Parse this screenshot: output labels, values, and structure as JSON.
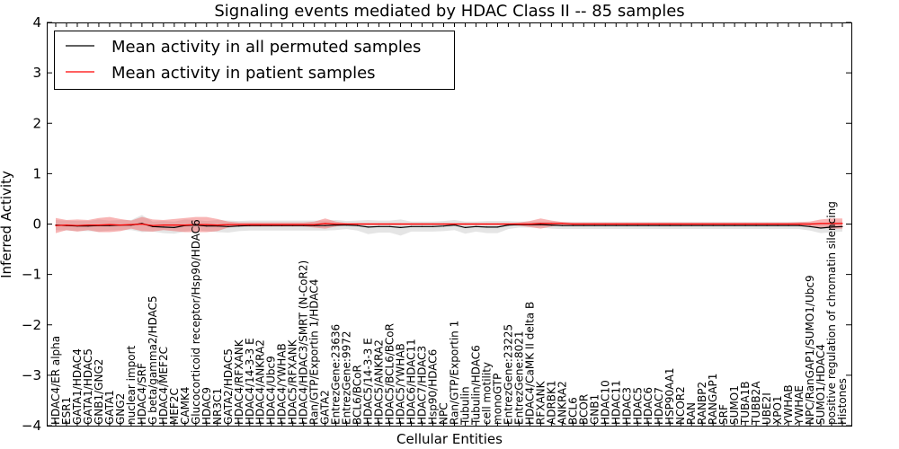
{
  "chart_data": {
    "type": "line",
    "title": "Signaling events mediated by HDAC Class II -- 85 samples",
    "xlabel": "Cellular Entities",
    "ylabel": "Inferred Activity",
    "ylim": [
      -4,
      4
    ],
    "yticks": [
      "−4",
      "−3",
      "−2",
      "−1",
      "0",
      "1",
      "2",
      "3",
      "4"
    ],
    "legend": {
      "position": "top-left",
      "entries": [
        {
          "label": "Mean activity in all permuted samples",
          "color": "#000000"
        },
        {
          "label": "Mean activity in patient samples",
          "color": "#ff0000"
        }
      ]
    },
    "categories": [
      "HDAC4/ER alpha",
      "ESR1",
      "GATA1/HDAC4",
      "GATA1/HDAC5",
      "GNB1/GNG2",
      "GATA1",
      "GNG2",
      "nuclear import",
      "HDAC4/SRF",
      "G beta/gamma2/HDAC5",
      "HDAC4/MEF2C",
      "MEF2C",
      "CAMK4",
      "Glucocorticoid receptor/Hsp90/HDAC6",
      "HDAC9",
      "NR3C1",
      "GATA2/HDAC5",
      "HDAC4/RFXANK",
      "HDAC4/14-3-3 E",
      "HDAC4/ANKRA2",
      "HDAC4/Ubc9",
      "HDAC4/YWHAB",
      "HDAC5/RFXANK",
      "HDAC4/HDAC3/SMRT (N-CoR2)",
      "Ran/GTP/Exportin 1/HDAC4",
      "GATA2",
      "EntrezGene:23636",
      "EntrezGene:9972",
      "BCL6/BCoR",
      "HDAC5/14-3-3 E",
      "HDAC5/ANKRA2",
      "HDAC5/BCL6/BCoR",
      "HDAC5/YWHAB",
      "HDAC6/HDAC11",
      "HDAC7/HDAC3",
      "Hsp90/HDAC6",
      "NPC",
      "Ran/GTP/Exportin 1",
      "Tubulin",
      "Tubulin/HDAC6",
      "cell motility",
      "monoGTP",
      "EntrezGene:23225",
      "EntrezGene:8021",
      "HDAC4/CaMK II delta B",
      "RFXANK",
      "ADRBK1",
      "ANKRA2",
      "BCL6",
      "BCOR",
      "GNB1",
      "HDAC10",
      "HDAC11",
      "HDAC3",
      "HDAC5",
      "HDAC6",
      "HDAC7",
      "HSP90AA1",
      "NCOR2",
      "RAN",
      "RANBP2",
      "RANGAP1",
      "SRF",
      "SUMO1",
      "TUBA1B",
      "TUBB2A",
      "UBE2I",
      "XPO1",
      "YWHAB",
      "YWHAE",
      "NPC/RanGAP1/SUMO1/Ubc9",
      "SUMO1/HDAC4",
      "positive regulation of chromatin silencing",
      "Histones"
    ],
    "series": [
      {
        "name": "Mean activity in patient samples",
        "color": "#ff0000",
        "values": [
          -0.03,
          -0.02,
          -0.03,
          -0.02,
          -0.02,
          -0.01,
          -0.02,
          -0.01,
          0.0,
          -0.03,
          -0.02,
          -0.02,
          -0.02,
          -0.01,
          -0.01,
          -0.02,
          -0.01,
          -0.01,
          -0.01,
          -0.01,
          -0.01,
          -0.01,
          -0.01,
          -0.01,
          -0.01,
          0.01,
          0.0,
          0.0,
          0.0,
          0.0,
          0.0,
          0.0,
          0.0,
          0.0,
          0.0,
          0.0,
          0.0,
          0.0,
          0.0,
          0.0,
          0.0,
          0.0,
          0.0,
          0.0,
          0.0,
          0.01,
          0.01,
          0.01,
          0.0,
          0.0,
          0.0,
          0.0,
          0.0,
          0.0,
          0.0,
          0.0,
          0.0,
          0.0,
          0.0,
          0.0,
          0.0,
          0.0,
          0.0,
          0.0,
          0.0,
          0.0,
          0.0,
          0.0,
          0.0,
          0.0,
          0.0,
          0.01,
          0.01,
          0.01
        ],
        "band": [
          0.15,
          0.1,
          0.12,
          0.1,
          0.14,
          0.15,
          0.12,
          0.08,
          0.14,
          0.12,
          0.1,
          0.12,
          0.14,
          0.15,
          0.15,
          0.12,
          0.06,
          0.04,
          0.04,
          0.04,
          0.04,
          0.04,
          0.04,
          0.04,
          0.06,
          0.1,
          0.05,
          0.02,
          0.02,
          0.02,
          0.02,
          0.02,
          0.02,
          0.02,
          0.02,
          0.02,
          0.02,
          0.02,
          0.02,
          0.02,
          0.02,
          0.02,
          0.02,
          0.03,
          0.06,
          0.1,
          0.06,
          0.03,
          0.03,
          0.03,
          0.03,
          0.03,
          0.03,
          0.03,
          0.03,
          0.03,
          0.03,
          0.03,
          0.03,
          0.03,
          0.03,
          0.03,
          0.03,
          0.03,
          0.03,
          0.03,
          0.03,
          0.03,
          0.03,
          0.04,
          0.05,
          0.08,
          0.1,
          0.1
        ]
      },
      {
        "name": "Mean activity in all permuted samples",
        "color": "#000000",
        "values": [
          -0.02,
          -0.03,
          -0.04,
          -0.04,
          -0.03,
          -0.03,
          -0.02,
          -0.02,
          0.01,
          -0.05,
          -0.06,
          -0.07,
          -0.03,
          -0.02,
          -0.04,
          -0.04,
          -0.05,
          -0.04,
          -0.03,
          -0.03,
          -0.03,
          -0.03,
          -0.03,
          -0.03,
          -0.03,
          -0.03,
          -0.02,
          -0.02,
          -0.03,
          -0.06,
          -0.05,
          -0.05,
          -0.07,
          -0.05,
          -0.05,
          -0.05,
          -0.04,
          -0.02,
          -0.07,
          -0.05,
          -0.06,
          -0.06,
          -0.02,
          -0.01,
          -0.01,
          -0.01,
          -0.02,
          -0.03,
          -0.03,
          -0.03,
          -0.03,
          -0.03,
          -0.03,
          -0.03,
          -0.03,
          -0.03,
          -0.03,
          -0.03,
          -0.03,
          -0.03,
          -0.03,
          -0.03,
          -0.03,
          -0.03,
          -0.03,
          -0.03,
          -0.03,
          -0.03,
          -0.03,
          -0.03,
          -0.05,
          -0.08,
          -0.06,
          -0.05
        ],
        "band": [
          0.1,
          0.1,
          0.1,
          0.1,
          0.12,
          0.1,
          0.1,
          0.1,
          0.17,
          0.1,
          0.12,
          0.12,
          0.12,
          0.1,
          0.1,
          0.12,
          0.12,
          0.1,
          0.1,
          0.1,
          0.1,
          0.1,
          0.1,
          0.1,
          0.1,
          0.1,
          0.1,
          0.08,
          0.1,
          0.14,
          0.12,
          0.12,
          0.16,
          0.1,
          0.1,
          0.1,
          0.1,
          0.1,
          0.12,
          0.1,
          0.12,
          0.12,
          0.08,
          0.06,
          0.06,
          0.06,
          0.07,
          0.07,
          0.07,
          0.07,
          0.07,
          0.07,
          0.07,
          0.07,
          0.07,
          0.07,
          0.07,
          0.07,
          0.07,
          0.07,
          0.07,
          0.07,
          0.07,
          0.07,
          0.07,
          0.07,
          0.07,
          0.07,
          0.07,
          0.07,
          0.08,
          0.1,
          0.1,
          0.1
        ]
      }
    ]
  }
}
